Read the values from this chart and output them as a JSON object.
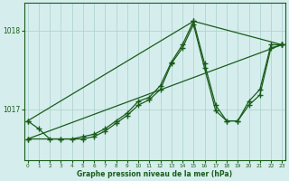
{
  "xlabel": "Graphe pression niveau de la mer (hPa)",
  "bg_color": "#d5eeed",
  "line_color": "#1a5c1a",
  "grid_color": "#b0d4d0",
  "hours": [
    0,
    1,
    2,
    3,
    4,
    5,
    6,
    7,
    8,
    9,
    10,
    11,
    12,
    13,
    14,
    15,
    16,
    17,
    18,
    19,
    20,
    21,
    22,
    23
  ],
  "series1": [
    1016.85,
    1016.75,
    1016.62,
    1016.62,
    1016.62,
    1016.65,
    1016.68,
    1016.75,
    1016.85,
    1016.95,
    1017.1,
    1017.15,
    1017.3,
    1017.6,
    1017.82,
    1018.12,
    1017.58,
    1017.05,
    1016.85,
    1016.85,
    1017.1,
    1017.25,
    1017.82,
    1017.82
  ],
  "series2_x": [
    0,
    3,
    5,
    6,
    7,
    8,
    9,
    10,
    11,
    12,
    13,
    14,
    15,
    16,
    17,
    18,
    19,
    20,
    21,
    22,
    23
  ],
  "series2_y": [
    1016.62,
    1016.62,
    1016.62,
    1016.65,
    1016.72,
    1016.82,
    1016.92,
    1017.05,
    1017.12,
    1017.25,
    1017.58,
    1017.78,
    1018.08,
    1017.52,
    1016.98,
    1016.85,
    1016.85,
    1017.05,
    1017.18,
    1017.78,
    1017.82
  ],
  "line3_x": [
    0,
    23
  ],
  "line3_y": [
    1016.62,
    1017.82
  ],
  "line4_x": [
    0,
    15,
    23
  ],
  "line4_y": [
    1016.85,
    1018.12,
    1017.82
  ],
  "ylim_min": 1016.35,
  "ylim_max": 1018.35,
  "yticks": [
    1017.0,
    1018.0
  ],
  "xlim_min": -0.3,
  "xlim_max": 23.3
}
